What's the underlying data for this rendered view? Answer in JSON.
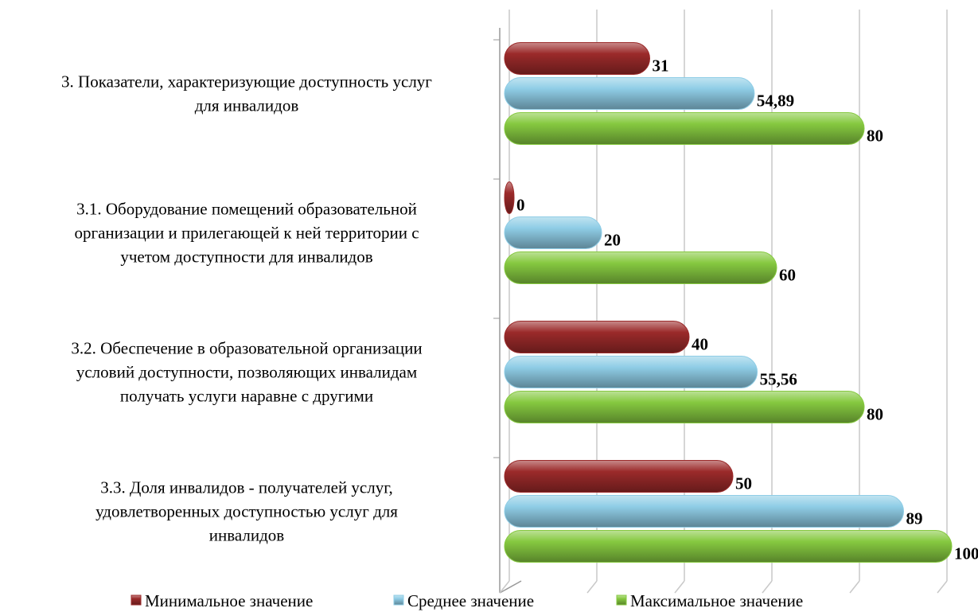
{
  "chart_data": {
    "type": "bar",
    "orientation": "horizontal",
    "categories": [
      "3. Показатели, характеризующие доступность услуг\nдля инвалидов",
      "3.1. Оборудование помещений образовательной\nорганизации и прилегающей к ней территории с\nучетом доступности для инвалидов",
      "3.2. Обеспечение в образовательной организации\nусловий доступности, позволяющих инвалидам\nполучать услуги наравне с другими",
      "3.3. Доля инвалидов - получателей услуг,\nудовлетворенных доступностью услуг для\nинвалидов"
    ],
    "series": [
      {
        "name": "Минимальное значение",
        "color": "#9b2a2a",
        "values": [
          31,
          0,
          40,
          50
        ]
      },
      {
        "name": "Среднее значение",
        "color": "#8fcde6",
        "values": [
          54.89,
          20,
          55.56,
          89
        ],
        "value_labels": [
          "54,89",
          "20",
          "55,56",
          "89"
        ]
      },
      {
        "name": "Максимальное значение",
        "color": "#86c940",
        "values": [
          80,
          60,
          80,
          100
        ]
      }
    ],
    "xlim": [
      0,
      100
    ],
    "xticks": [
      0,
      20,
      40,
      60,
      80,
      100
    ],
    "tick_labels": false,
    "grid": true,
    "legend": "bottom"
  }
}
